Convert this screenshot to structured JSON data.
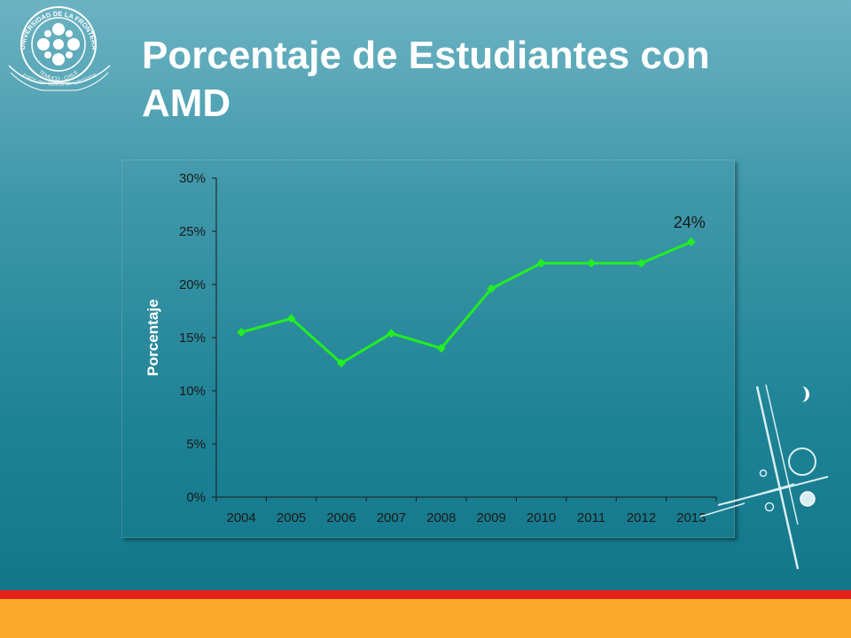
{
  "slide": {
    "title_line1": "Porcentaje de Estudiantes con",
    "title_line2": "AMD"
  },
  "logo": {
    "icon": "university-seal-icon",
    "arc_top": "UNIVERSIDAD DE LA FRONTERA",
    "arc_bottom": "TEMUCO · CHILE",
    "motto": "FORTIS·PRO·MENTIS·AD·VERITATEM"
  },
  "colors": {
    "line": "#22ee22",
    "title": "#ffffff",
    "band_red": "#e3221b",
    "band_yellow": "#fba92b"
  },
  "chart_data": {
    "type": "line",
    "title": "",
    "xlabel": "",
    "ylabel": "Porcentaje",
    "categories": [
      "2004",
      "2005",
      "2006",
      "2007",
      "2008",
      "2009",
      "2010",
      "2011",
      "2012",
      "2013"
    ],
    "values": [
      15.5,
      16.8,
      12.6,
      15.4,
      14.0,
      19.6,
      22.0,
      22.0,
      22.0,
      24.0
    ],
    "ylim": [
      0,
      30
    ],
    "yticks": [
      0,
      5,
      10,
      15,
      20,
      25,
      30
    ],
    "ytick_labels": [
      "0%",
      "5%",
      "10%",
      "15%",
      "20%",
      "25%",
      "30%"
    ],
    "annotations": [
      {
        "category": "2013",
        "text": "24%"
      }
    ],
    "grid": false,
    "legend": "none"
  }
}
